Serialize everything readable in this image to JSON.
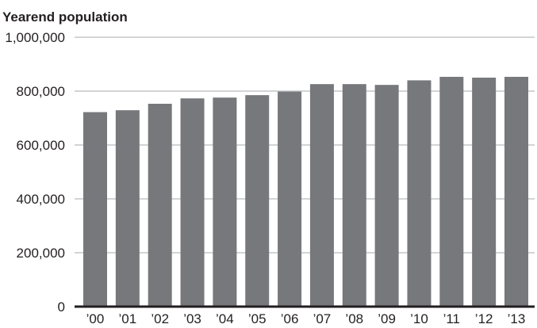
{
  "chart_data": {
    "type": "bar",
    "title": "Yearend population",
    "xlabel": "",
    "ylabel": "",
    "categories": [
      "’00",
      "’01",
      "’02",
      "’03",
      "’04",
      "’05",
      "’06",
      "’07",
      "’08",
      "’09",
      "’10",
      "’11",
      "’12",
      "’13"
    ],
    "values": [
      722000,
      729000,
      753000,
      773000,
      776000,
      785000,
      798000,
      826000,
      826000,
      823000,
      840000,
      853000,
      850000,
      853000
    ],
    "ylim": [
      0,
      1000000
    ],
    "yticks": [
      0,
      200000,
      400000,
      600000,
      800000,
      1000000
    ],
    "ytick_labels": [
      "0",
      "200,000",
      "400,000",
      "600,000",
      "800,000",
      "1,000,000"
    ],
    "grid": true,
    "legend": "none",
    "colors": {
      "bar": "#77787b",
      "grid": "#a7a9ac",
      "axis": "#231f20",
      "text": "#231f20"
    }
  }
}
